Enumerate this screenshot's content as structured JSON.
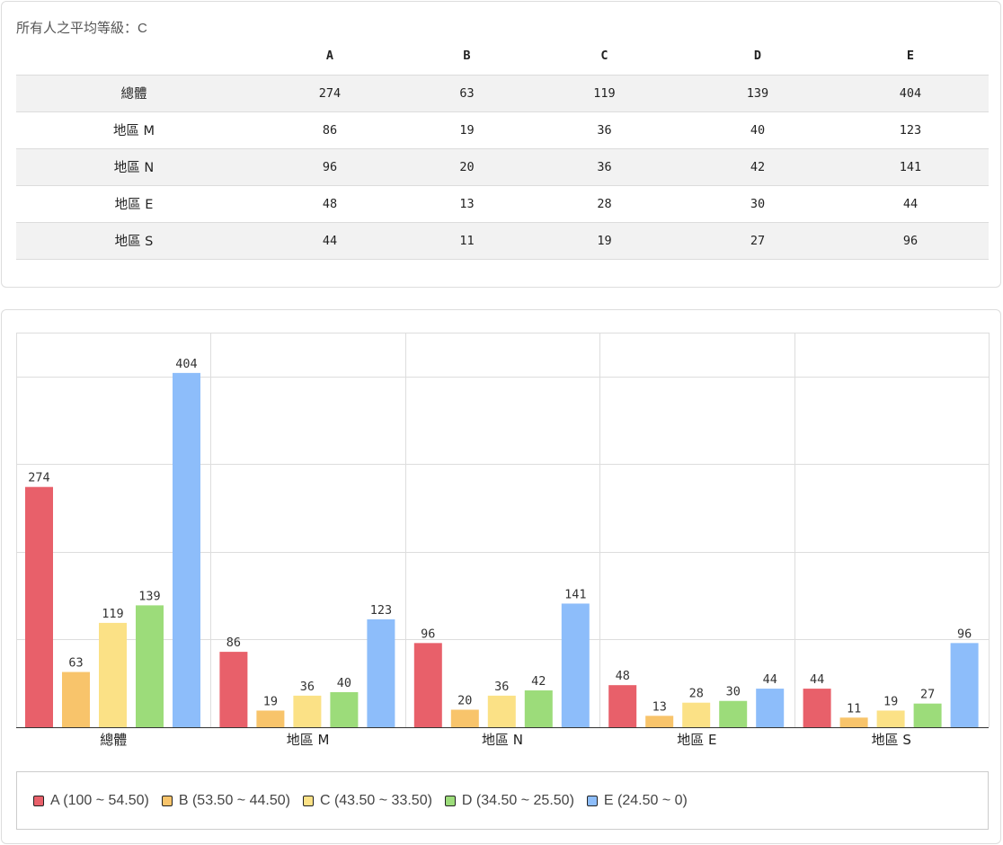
{
  "summary": {
    "label": "所有人之平均等級：C"
  },
  "table": {
    "columns": [
      "A",
      "B",
      "C",
      "D",
      "E"
    ],
    "rows": [
      {
        "label": "總體",
        "values": [
          274,
          63,
          119,
          139,
          404
        ]
      },
      {
        "label": "地區 M",
        "values": [
          86,
          19,
          36,
          40,
          123
        ]
      },
      {
        "label": "地區 N",
        "values": [
          96,
          20,
          36,
          42,
          141
        ]
      },
      {
        "label": "地區 E",
        "values": [
          48,
          13,
          28,
          30,
          44
        ]
      },
      {
        "label": "地區 S",
        "values": [
          44,
          11,
          19,
          27,
          96
        ]
      }
    ]
  },
  "chart_data": {
    "type": "bar",
    "categories": [
      "總體",
      "地區 M",
      "地區 N",
      "地區 E",
      "地區 S"
    ],
    "series": [
      {
        "name": "A (100 ~ 54.50)",
        "color": "#e8606a",
        "values": [
          274,
          86,
          96,
          48,
          44
        ]
      },
      {
        "name": "B (53.50 ~ 44.50)",
        "color": "#f8c46b",
        "values": [
          63,
          19,
          20,
          13,
          11
        ]
      },
      {
        "name": "C (43.50 ~ 33.50)",
        "color": "#fbe186",
        "values": [
          119,
          36,
          36,
          28,
          19
        ]
      },
      {
        "name": "D (34.50 ~ 25.50)",
        "color": "#9cdc7a",
        "values": [
          139,
          40,
          42,
          30,
          27
        ]
      },
      {
        "name": "E (24.50 ~ 0)",
        "color": "#8dbdfa",
        "values": [
          404,
          123,
          141,
          44,
          96
        ]
      }
    ],
    "ylim": [
      0,
      450
    ],
    "grid": true,
    "legend_position": "bottom",
    "data_labels": true,
    "title": "",
    "xlabel": "",
    "ylabel": ""
  }
}
